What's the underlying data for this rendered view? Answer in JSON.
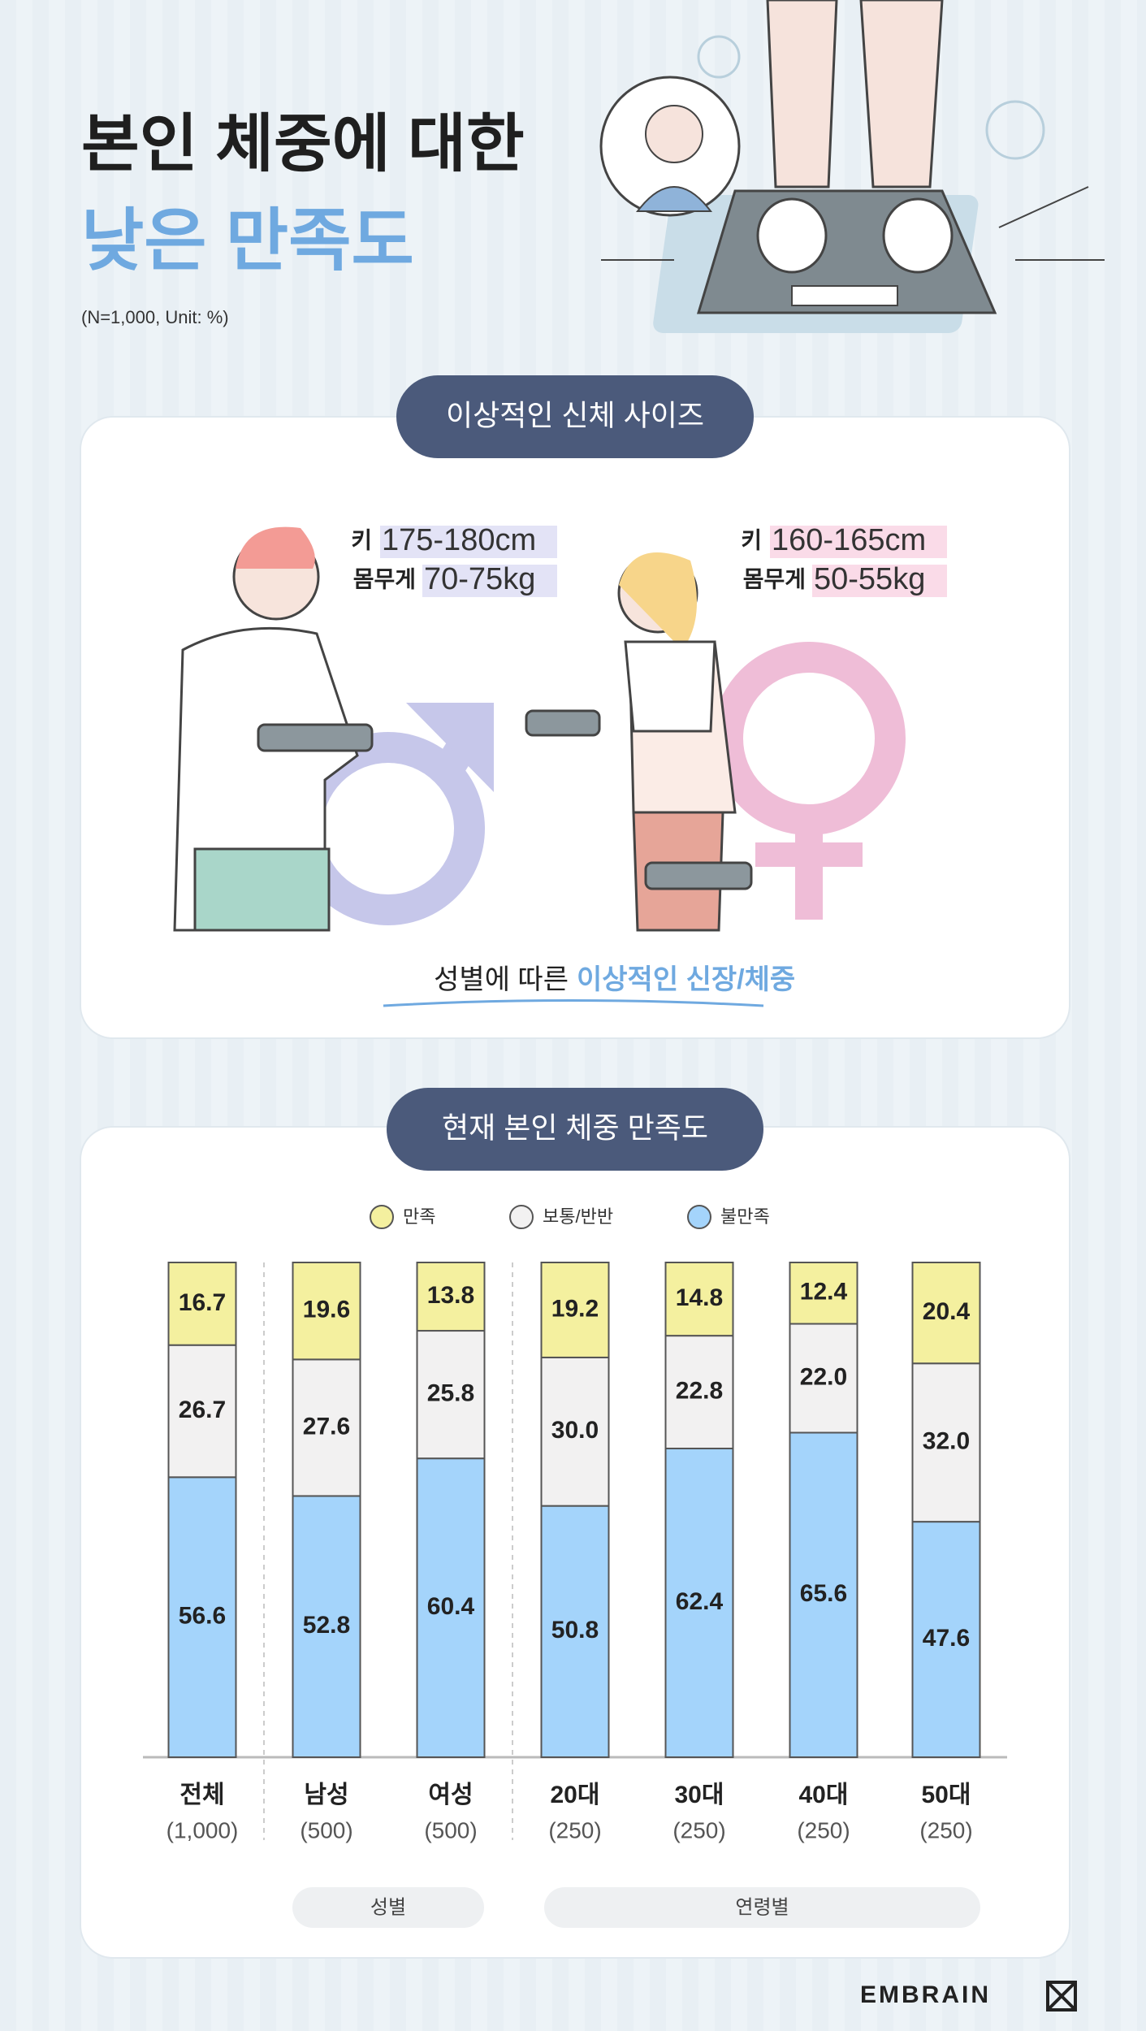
{
  "header": {
    "title_line1": "본인 체중에 대한",
    "title_line2": "낮은 만족도",
    "note": "(N=1,000, Unit: %)"
  },
  "ideal": {
    "section_title": "이상적인 신체 사이즈",
    "male": {
      "height_label": "키",
      "height_value": "175-180cm",
      "weight_label": "몸무게",
      "weight_value": "70-75kg"
    },
    "female": {
      "height_label": "키",
      "height_value": "160-165cm",
      "weight_label": "몸무게",
      "weight_value": "50-55kg"
    },
    "caption_plain": "성별에 따른",
    "caption_highlight": "이상적인 신장/체중"
  },
  "chart_data": {
    "type": "stacked_bar",
    "title": "현재 본인 체중 만족도",
    "categories": [
      "전체",
      "남성",
      "여성",
      "20대",
      "30대",
      "40대",
      "50대"
    ],
    "sample_labels": [
      "(1,000)",
      "(500)",
      "(500)",
      "(250)",
      "(250)",
      "(250)",
      "(250)"
    ],
    "groups": [
      "성별",
      "연령별"
    ],
    "ylim": [
      0,
      100
    ],
    "series": [
      {
        "name": "만족",
        "color": "#f4f09f",
        "values": [
          16.7,
          19.6,
          13.8,
          19.2,
          14.8,
          12.4,
          20.4
        ],
        "value_labels": [
          "16.7",
          "19.6",
          "13.8",
          "19.2",
          "14.8",
          "12.4",
          "20.4"
        ]
      },
      {
        "name": "보통/반반",
        "color": "#f2f1f1",
        "values": [
          26.7,
          27.6,
          25.8,
          30.0,
          22.8,
          22.0,
          32.0
        ],
        "value_labels": [
          "26.7",
          "27.6",
          "25.8",
          "30.0",
          "22.8",
          "22.0",
          "32.0"
        ]
      },
      {
        "name": "불만족",
        "color": "#a4d4fb",
        "values": [
          56.6,
          52.8,
          60.4,
          50.8,
          62.4,
          65.6,
          47.6
        ],
        "value_labels": [
          "56.6",
          "52.8",
          "60.4",
          "50.8",
          "62.4",
          "65.6",
          "47.6"
        ]
      }
    ]
  },
  "footer": {
    "logo": "EMBRAIN"
  }
}
